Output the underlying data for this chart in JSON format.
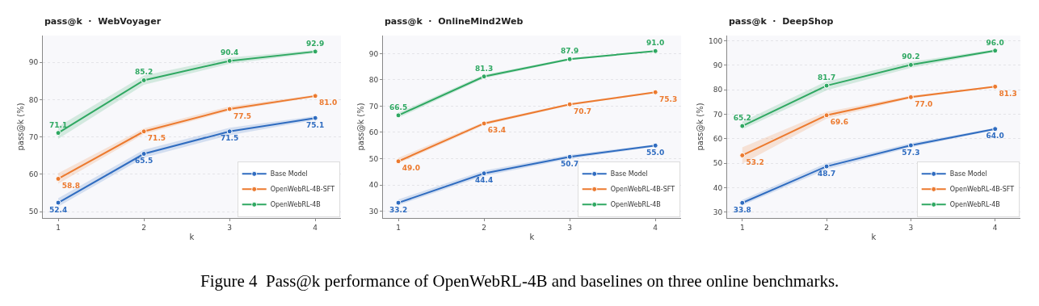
{
  "chart_data": [
    {
      "type": "line",
      "title": "pass@k  ·  WebVoyager",
      "xlabel": "k",
      "ylabel": "pass@k (%)",
      "x": [
        1,
        2,
        3,
        4
      ],
      "xlim": [
        0.82,
        4.3
      ],
      "xticks": [
        1,
        2,
        3,
        4
      ],
      "ylim": [
        48.3,
        97.2
      ],
      "yticks": [
        50,
        60,
        70,
        80,
        90
      ],
      "grid": "y",
      "legend": "bottom right",
      "marker": "circle",
      "line_style": "solid",
      "annotations": [
        "Figure 4  Pass@k performance of OpenWebRL-4B and baselines on three online benchmarks."
      ],
      "series": [
        {
          "name": "Base Model",
          "color": "#2f6cc0",
          "values": [
            52.4,
            65.5,
            71.5,
            75.1
          ],
          "value_labels": [
            "52.4",
            "65.5",
            "71.5",
            "75.1"
          ],
          "lower": [
            51.4,
            64.5,
            70.5,
            74.6
          ],
          "upper": [
            53.6,
            66.6,
            72.5,
            75.6
          ]
        },
        {
          "name": "OpenWebRL-4B-SFT",
          "color": "#ec7a2f",
          "values": [
            58.8,
            71.5,
            77.5,
            81.0
          ],
          "value_labels": [
            "58.8",
            "71.5",
            "77.5",
            "81.0"
          ],
          "lower": [
            57.5,
            70.8,
            77.0,
            80.7
          ],
          "upper": [
            60.3,
            72.3,
            78.2,
            81.3
          ]
        },
        {
          "name": "OpenWebRL-4B",
          "color": "#2fa862",
          "values": [
            71.1,
            85.2,
            90.4,
            92.9
          ],
          "value_labels": [
            "71.1",
            "85.2",
            "90.4",
            "92.9"
          ],
          "lower": [
            69.5,
            84.0,
            89.6,
            92.5
          ],
          "upper": [
            72.8,
            86.5,
            91.3,
            93.3
          ]
        }
      ]
    },
    {
      "type": "line",
      "title": "pass@k  ·  OnlineMind2Web",
      "xlabel": "k",
      "ylabel": "pass@k (%)",
      "x": [
        1,
        2,
        3,
        4
      ],
      "xlim": [
        0.82,
        4.3
      ],
      "xticks": [
        1,
        2,
        3,
        4
      ],
      "ylim": [
        27.4,
        96.9
      ],
      "yticks": [
        30,
        40,
        50,
        60,
        70,
        80,
        90
      ],
      "grid": "y",
      "legend": "bottom right",
      "marker": "circle",
      "line_style": "solid",
      "series": [
        {
          "name": "Base Model",
          "color": "#2f6cc0",
          "values": [
            33.2,
            44.4,
            50.7,
            55.0
          ],
          "value_labels": [
            "33.2",
            "44.4",
            "50.7",
            "55.0"
          ],
          "lower": [
            32.3,
            43.4,
            49.9,
            54.6
          ],
          "upper": [
            34.5,
            45.5,
            51.5,
            55.4
          ]
        },
        {
          "name": "OpenWebRL-4B-SFT",
          "color": "#ec7a2f",
          "values": [
            49.0,
            63.4,
            70.7,
            75.3
          ],
          "value_labels": [
            "49.0",
            "63.4",
            "70.7",
            "75.3"
          ],
          "lower": [
            48.2,
            62.8,
            70.3,
            75.0
          ],
          "upper": [
            50.3,
            64.0,
            71.1,
            75.6
          ]
        },
        {
          "name": "OpenWebRL-4B",
          "color": "#2fa862",
          "values": [
            66.5,
            81.3,
            87.9,
            91.0
          ],
          "value_labels": [
            "66.5",
            "81.3",
            "87.9",
            "91.0"
          ],
          "lower": [
            65.5,
            80.6,
            87.5,
            90.8
          ],
          "upper": [
            67.5,
            82.0,
            88.3,
            91.2
          ]
        }
      ]
    },
    {
      "type": "line",
      "title": "pass@k  ·  DeepShop",
      "xlabel": "k",
      "ylabel": "pass@k (%)",
      "x": [
        1,
        2,
        3,
        4
      ],
      "xlim": [
        0.82,
        4.3
      ],
      "xticks": [
        1,
        2,
        3,
        4
      ],
      "ylim": [
        27.6,
        102.2
      ],
      "yticks": [
        30,
        40,
        50,
        60,
        70,
        80,
        90,
        100
      ],
      "grid": "y",
      "legend": "bottom right",
      "marker": "circle",
      "line_style": "solid",
      "series": [
        {
          "name": "Base Model",
          "color": "#2f6cc0",
          "values": [
            33.8,
            48.7,
            57.3,
            64.0
          ],
          "value_labels": [
            "33.8",
            "48.7",
            "57.3",
            "64.0"
          ],
          "lower": [
            32.8,
            47.5,
            56.5,
            63.6
          ],
          "upper": [
            35.0,
            50.0,
            58.2,
            64.4
          ]
        },
        {
          "name": "OpenWebRL-4B-SFT",
          "color": "#ec7a2f",
          "values": [
            53.2,
            69.6,
            77.0,
            81.3
          ],
          "value_labels": [
            "53.2",
            "69.6",
            "77.0",
            "81.3"
          ],
          "lower": [
            49.8,
            68.2,
            76.5,
            81.0
          ],
          "upper": [
            56.5,
            71.0,
            77.6,
            81.6
          ]
        },
        {
          "name": "OpenWebRL-4B",
          "color": "#2fa862",
          "values": [
            65.2,
            81.7,
            90.2,
            96.0
          ],
          "value_labels": [
            "65.2",
            "81.7",
            "90.2",
            "96.0"
          ],
          "lower": [
            63.8,
            79.8,
            89.0,
            95.5
          ],
          "upper": [
            67.0,
            83.5,
            91.5,
            96.5
          ]
        }
      ]
    }
  ]
}
